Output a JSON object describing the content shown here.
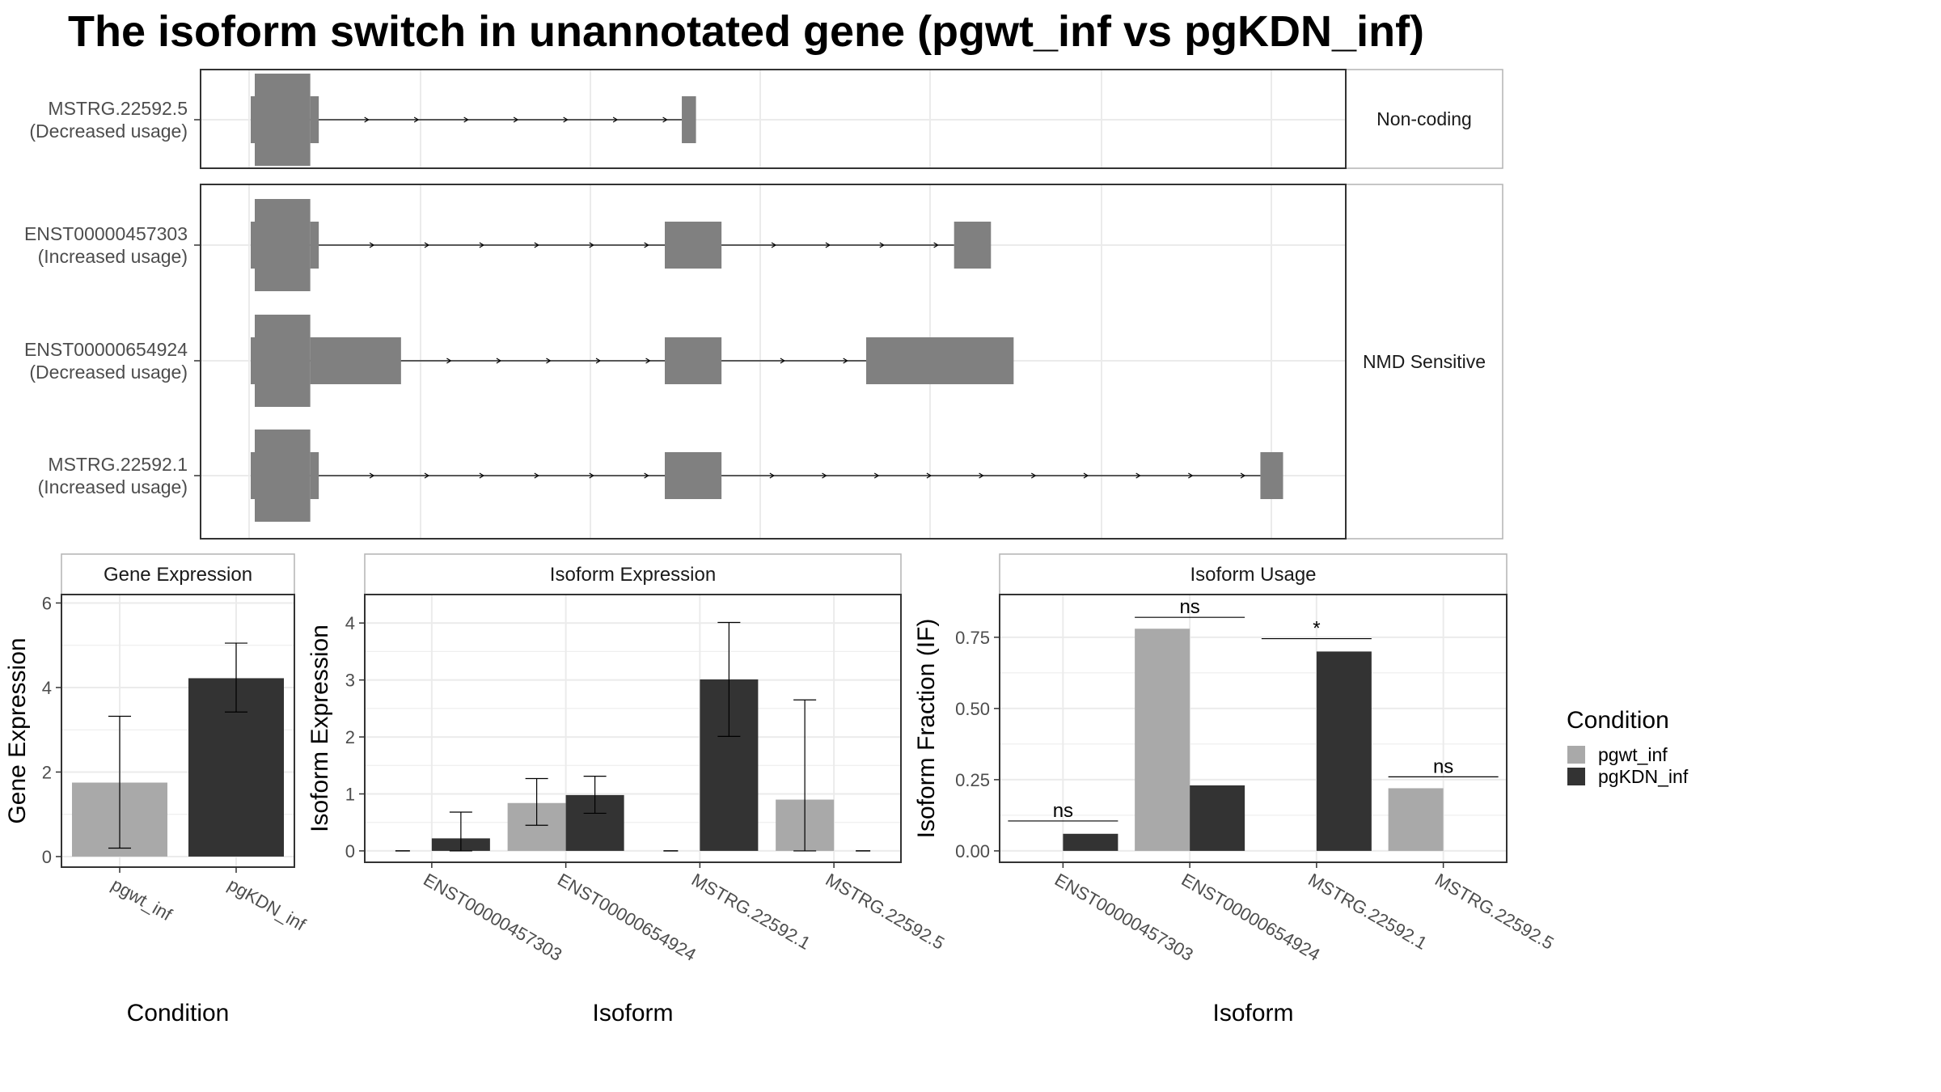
{
  "title": "The isoform switch in unannotated gene (pgwt_inf vs pgKDN_inf)",
  "colors": {
    "pgwt_inf": "#a9a9a9",
    "pgKDN_inf": "#333333",
    "structure": "#808080",
    "grid": "#ebebeb",
    "strip_border": "#b3b3b3"
  },
  "structure_panel": {
    "groups": [
      {
        "label": "Non-coding",
        "isoforms": [
          {
            "name": "MSTRG.22592.5",
            "usage": "(Decreased usage)",
            "exons": [
              {
                "start": 0,
                "end": 4.2,
                "thick": true
              },
              {
                "start": 4.2,
                "end": 4.8,
                "thick": false
              },
              {
                "start": 30.4,
                "end": 31.4,
                "thick": false
              }
            ]
          }
        ]
      },
      {
        "label": "NMD Sensitive",
        "isoforms": [
          {
            "name": "ENST00000457303",
            "usage": "(Increased usage)",
            "exons": [
              {
                "start": 0,
                "end": 4.2,
                "thick": true
              },
              {
                "start": 4.2,
                "end": 4.8,
                "thick": false
              },
              {
                "start": 29.2,
                "end": 33.2,
                "thick": false
              },
              {
                "start": 49.6,
                "end": 52.2,
                "thick": false
              }
            ]
          },
          {
            "name": "ENST00000654924",
            "usage": "(Decreased usage)",
            "exons": [
              {
                "start": 0,
                "end": 4.2,
                "thick": true
              },
              {
                "start": 4.2,
                "end": 10.6,
                "thick": false
              },
              {
                "start": 29.2,
                "end": 33.2,
                "thick": false
              },
              {
                "start": 43.4,
                "end": 53.8,
                "thick": false
              }
            ]
          },
          {
            "name": "MSTRG.22592.1",
            "usage": "(Increased usage)",
            "exons": [
              {
                "start": 0,
                "end": 4.2,
                "thick": true
              },
              {
                "start": 4.2,
                "end": 4.8,
                "thick": false
              },
              {
                "start": 29.2,
                "end": 33.2,
                "thick": false
              },
              {
                "start": 71.2,
                "end": 72.8,
                "thick": false
              }
            ]
          }
        ]
      }
    ]
  },
  "chart_data": [
    {
      "type": "bar",
      "title": "Gene Expression",
      "xlabel": "Condition",
      "ylabel": "Gene Expression",
      "categories": [
        "pgwt_inf",
        "pgKDN_inf"
      ],
      "values": [
        1.75,
        4.22
      ],
      "error_low": [
        0.2,
        3.42
      ],
      "error_high": [
        3.32,
        5.05
      ],
      "ylim": [
        -0.25,
        6.2
      ],
      "yticks": [
        0,
        2,
        4,
        6
      ],
      "ytick_labels": [
        "0",
        "2",
        "4",
        "6"
      ]
    },
    {
      "type": "bar",
      "title": "Isoform Expression",
      "xlabel": "Isoform",
      "ylabel": "Isoform Expression",
      "categories": [
        "ENST00000457303",
        "ENST00000654924",
        "MSTRG.22592.1",
        "MSTRG.22592.5"
      ],
      "series": [
        {
          "name": "pgwt_inf",
          "values": [
            0,
            0.84,
            0,
            0.9
          ],
          "error_low": [
            0,
            0.45,
            0,
            0
          ],
          "error_high": [
            0,
            1.27,
            0,
            2.65
          ]
        },
        {
          "name": "pgKDN_inf",
          "values": [
            0.22,
            0.98,
            3.01,
            0
          ],
          "error_low": [
            0,
            0.66,
            2.01,
            0
          ],
          "error_high": [
            0.68,
            1.31,
            4.01,
            0
          ]
        }
      ],
      "ylim": [
        -0.2,
        4.5
      ],
      "yticks": [
        0,
        1,
        2,
        3,
        4
      ],
      "ytick_labels": [
        "0",
        "1",
        "2",
        "3",
        "4"
      ]
    },
    {
      "type": "bar",
      "title": "Isoform Usage",
      "xlabel": "Isoform",
      "ylabel": "Isoform Fraction (IF)",
      "categories": [
        "ENST00000457303",
        "ENST00000654924",
        "MSTRG.22592.1",
        "MSTRG.22592.5"
      ],
      "series": [
        {
          "name": "pgwt_inf",
          "values": [
            0,
            0.78,
            0,
            0.22
          ]
        },
        {
          "name": "pgKDN_inf",
          "values": [
            0.06,
            0.23,
            0.7,
            0
          ]
        }
      ],
      "significance": [
        {
          "label": "ns",
          "value": 0.105
        },
        {
          "label": "ns",
          "value": 0.82
        },
        {
          "label": "*",
          "value": 0.745
        },
        {
          "label": "ns",
          "value": 0.26
        }
      ],
      "ylim": [
        -0.04,
        0.9
      ],
      "yticks": [
        0,
        0.25,
        0.5,
        0.75
      ],
      "ytick_labels": [
        "0.00",
        "0.25",
        "0.50",
        "0.75"
      ]
    }
  ],
  "legend": {
    "title": "Condition",
    "entries": [
      "pgwt_inf",
      "pgKDN_inf"
    ]
  }
}
